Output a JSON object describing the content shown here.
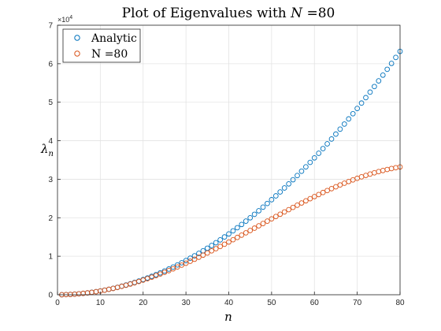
{
  "chart_data": {
    "type": "scatter",
    "title_prefix": "Plot of Eigenvalues with ",
    "title_var": "N",
    "title_suffix": " =80",
    "xlabel": "n",
    "ylabel": "λ",
    "ylabel_sub": "n",
    "y_multiplier_base": "×10",
    "y_multiplier_exp": "4",
    "xlim": [
      0,
      80
    ],
    "ylim": [
      0,
      70000
    ],
    "xticks": [
      "0",
      "10",
      "20",
      "30",
      "40",
      "50",
      "60",
      "70",
      "80"
    ],
    "yticks": [
      "0",
      "1",
      "2",
      "3",
      "4",
      "5",
      "6",
      "7"
    ],
    "grid": true,
    "legend_position": "top-left",
    "series": [
      {
        "name": "Analytic",
        "color": "#0072BD",
        "x": [
          1,
          2,
          3,
          4,
          5,
          6,
          7,
          8,
          9,
          10,
          11,
          12,
          13,
          14,
          15,
          16,
          17,
          18,
          19,
          20,
          21,
          22,
          23,
          24,
          25,
          26,
          27,
          28,
          29,
          30,
          31,
          32,
          33,
          34,
          35,
          36,
          37,
          38,
          39,
          40,
          41,
          42,
          43,
          44,
          45,
          46,
          47,
          48,
          49,
          50,
          51,
          52,
          53,
          54,
          55,
          56,
          57,
          58,
          59,
          60,
          61,
          62,
          63,
          64,
          65,
          66,
          67,
          68,
          69,
          70,
          71,
          72,
          73,
          74,
          75,
          76,
          77,
          78,
          79,
          80
        ],
        "y": [
          10,
          39,
          89,
          158,
          247,
          355,
          484,
          632,
          800,
          987,
          1194,
          1421,
          1668,
          1935,
          2221,
          2527,
          2853,
          3198,
          3564,
          3948,
          4353,
          4777,
          5221,
          5685,
          6169,
          6672,
          7195,
          7738,
          8301,
          8883,
          9485,
          10107,
          10749,
          11411,
          12092,
          12793,
          13514,
          14255,
          15015,
          15795,
          16595,
          17415,
          18254,
          19113,
          19992,
          20891,
          21809,
          22747,
          23705,
          24683,
          25681,
          26698,
          27735,
          28792,
          29869,
          30965,
          32081,
          33217,
          34373,
          35548,
          36743,
          37958,
          39193,
          40447,
          41721,
          43015,
          44329,
          45662,
          47015,
          48388,
          49781,
          51193,
          52625,
          54077,
          55549,
          57040,
          58552,
          60083,
          61633,
          63204
        ]
      },
      {
        "name": "N =80",
        "color": "#D95319",
        "x": [
          1,
          2,
          3,
          4,
          5,
          6,
          7,
          8,
          9,
          10,
          11,
          12,
          13,
          14,
          15,
          16,
          17,
          18,
          19,
          20,
          21,
          22,
          23,
          24,
          25,
          26,
          27,
          28,
          29,
          30,
          31,
          32,
          33,
          34,
          35,
          36,
          37,
          38,
          39,
          40,
          41,
          42,
          43,
          44,
          45,
          46,
          47,
          48,
          49,
          50,
          51,
          52,
          53,
          54,
          55,
          56,
          57,
          58,
          59,
          60,
          61,
          62,
          63,
          64,
          65,
          66,
          67,
          68,
          69,
          70,
          71,
          72,
          73,
          74,
          75,
          76,
          77,
          78,
          79,
          80
        ],
        "y": [
          10,
          39,
          89,
          158,
          246,
          354,
          481,
          628,
          793,
          977,
          1180,
          1401,
          1640,
          1897,
          2172,
          2464,
          2773,
          3099,
          3442,
          3800,
          4175,
          4564,
          4969,
          5389,
          5823,
          6271,
          6732,
          7206,
          7692,
          8190,
          8700,
          9220,
          9751,
          10291,
          10840,
          11398,
          11963,
          12535,
          13114,
          13699,
          14289,
          14884,
          15482,
          16083,
          16687,
          17292,
          17898,
          18504,
          19110,
          19713,
          20315,
          20913,
          21508,
          22098,
          22682,
          23260,
          23831,
          24394,
          24948,
          25492,
          26027,
          26550,
          27061,
          27559,
          28044,
          28515,
          28970,
          29409,
          29832,
          30237,
          30624,
          30993,
          31342,
          31671,
          31979,
          32267,
          32533,
          32776,
          32997,
          33195
        ]
      }
    ]
  }
}
